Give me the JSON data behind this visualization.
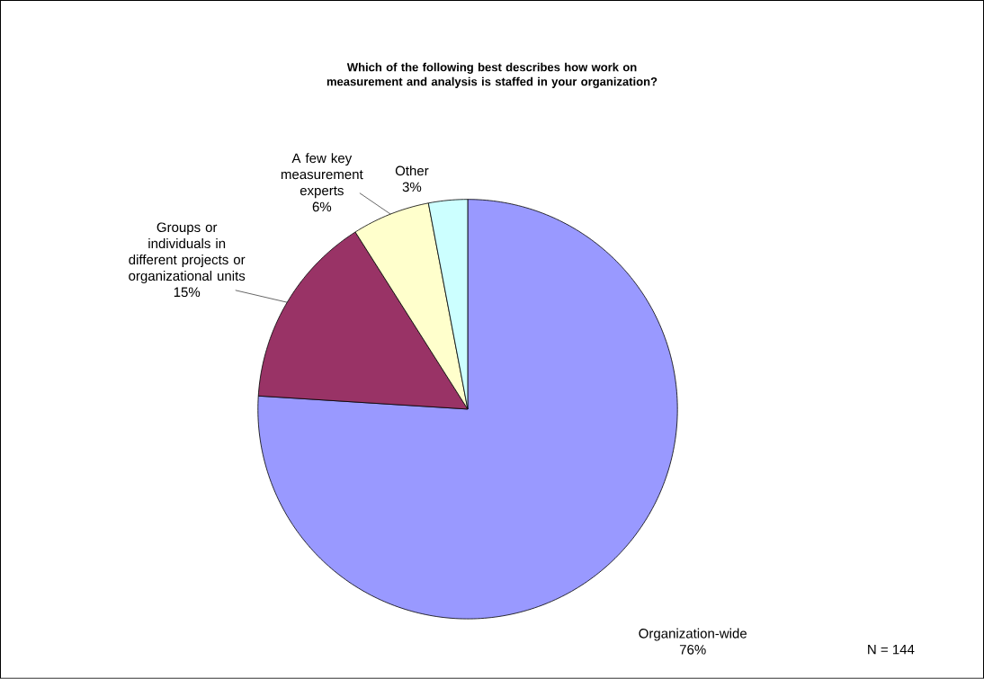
{
  "chart_data": {
    "type": "pie",
    "title": "Which of the following best describes how work on measurement and analysis is staffed in your organization?",
    "categories": [
      "Organization-wide",
      "Groups or individuals in different projects or organizational units",
      "A few key measurement experts",
      "Other"
    ],
    "values": [
      76,
      15,
      6,
      3
    ],
    "value_labels": [
      "76%",
      "15%",
      "6%",
      "3%"
    ],
    "colors": [
      "#9999ff",
      "#993366",
      "#ffffcc",
      "#ccffff"
    ],
    "annotations": [
      "N = 144"
    ]
  }
}
